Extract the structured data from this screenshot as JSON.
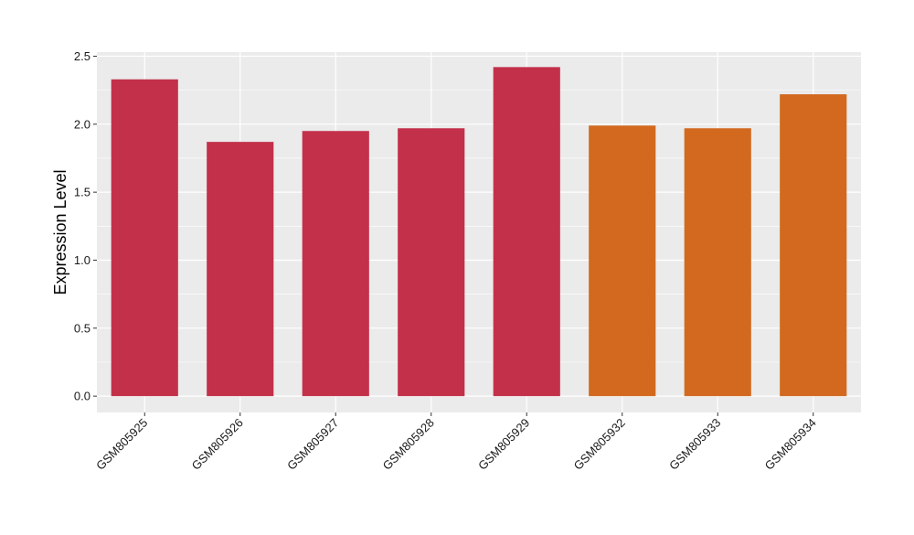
{
  "chart_data": {
    "type": "bar",
    "title": "",
    "xlabel": "",
    "ylabel": "Expression Level",
    "ylim": [
      -0.12,
      2.53
    ],
    "yticks": [
      0.0,
      0.5,
      1.0,
      1.5,
      2.0,
      2.5
    ],
    "ytick_labels": [
      "0.0",
      "0.5",
      "1.0",
      "1.5",
      "2.0",
      "2.5"
    ],
    "grid": true,
    "legend": "none",
    "categories": [
      "GSM805925",
      "GSM805926",
      "GSM805927",
      "GSM805928",
      "GSM805929",
      "GSM805932",
      "GSM805933",
      "GSM805934"
    ],
    "values": [
      2.33,
      1.87,
      1.95,
      1.97,
      2.42,
      1.99,
      1.97,
      2.22
    ],
    "bar_colors": [
      "#c3304a",
      "#c3304a",
      "#c3304a",
      "#c3304a",
      "#c3304a",
      "#d2691e",
      "#d2691e",
      "#d2691e"
    ],
    "panel_background": "#ebebeb",
    "grid_color": "#ffffff"
  }
}
